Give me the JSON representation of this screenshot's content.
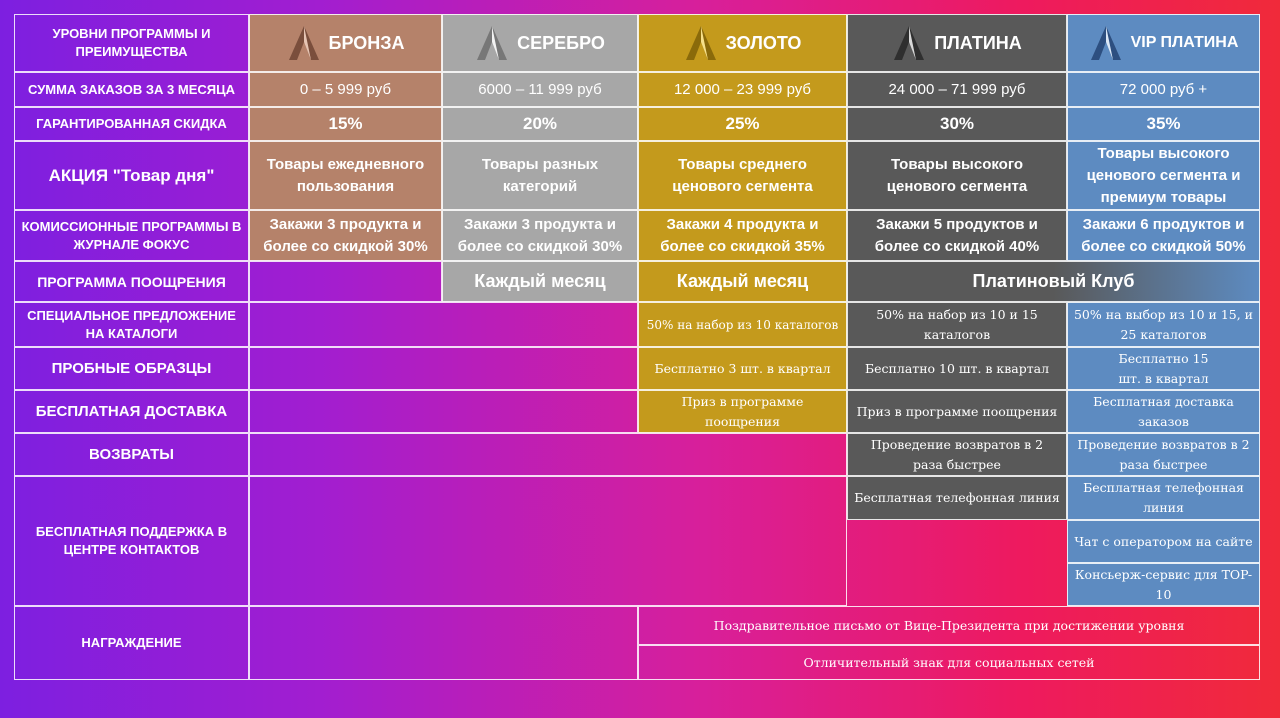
{
  "header_label": "Уровни программы и преимущества",
  "tiers": [
    {
      "name": "БРОНЗА",
      "color": "#b5826a"
    },
    {
      "name": "СЕРЕБРО",
      "color": "#a7a7a7"
    },
    {
      "name": "ЗОЛОТО",
      "color": "#c49a1c"
    },
    {
      "name": "ПЛАТИНА",
      "color": "#595959"
    },
    {
      "name": "VIP ПЛАТИНА",
      "color": "#5d8bc1"
    }
  ],
  "rows": {
    "sum": {
      "label": "Сумма заказов за 3 месяца",
      "values": [
        "0 – 5 999 руб",
        "6000 – 11 999 руб",
        "12 000 – 23 999 руб",
        "24 000 – 71 999 руб",
        "72 000 руб  +"
      ]
    },
    "discount": {
      "label": "Гарантированная скидка",
      "values": [
        "15%",
        "20%",
        "25%",
        "30%",
        "35%"
      ]
    },
    "deal": {
      "label": "АКЦИЯ \"Товар дня\"",
      "values": [
        "Товары ежедневного пользования",
        "Товары разных категорий",
        "Товары среднего ценового сегмента",
        "Товары высокого ценового сегмента",
        "Товары высокого ценового сегмента и премиум товары"
      ]
    },
    "commission": {
      "label": "Комиссионные программы в журнале Фокус",
      "values": [
        "Закажи 3 продукта и более со скидкой 30%",
        "Закажи 3 продукта и более со скидкой 30%",
        "Закажи 4 продукта и более со скидкой 35%",
        "Закажи 5 продуктов и более со скидкой 40%",
        "Закажи 6 продуктов и более со скидкой 50%"
      ]
    },
    "reward_program": {
      "label": "Программа поощрения",
      "silver": "Каждый месяц",
      "gold": "Каждый месяц",
      "platinum": "Платиновый Клуб"
    },
    "catalogs": {
      "label": "Специальное предложение на каталоги",
      "gold": "50% на набор из 10 каталогов",
      "platinum": "50% на набор из 10 и 15 каталогов",
      "vip": "50% на выбор из 10 и 15, и 25 каталогов"
    },
    "samples": {
      "label": "Пробные образцы",
      "gold": "Бесплатно 3 шт. в квартал",
      "platinum": "Бесплатно  10 шт. в квартал",
      "vip": "Бесплатно 15 шт. в квартал"
    },
    "delivery": {
      "label": "Бесплатная доставка",
      "gold": "Приз в программе поощрения",
      "platinum": "Приз в программе поощрения",
      "vip": "Бесплатная доставка заказов"
    },
    "returns": {
      "label": "Возвраты",
      "platinum": "Проведение возвратов в 2 раза быстрее",
      "vip": "Проведение возвратов в 2 раза быстрее"
    },
    "support": {
      "label": "Бесплатная поддержка в центре контактов",
      "platinum": "Бесплатная телефонная линия",
      "vip": [
        "Бесплатная телефонная линия",
        "Чат с оператором на сайте",
        "Консьерж-сервис для TOP-10"
      ]
    },
    "award": {
      "label": "Награждение",
      "items": [
        "Поздравительное  письмо  от  Вице-Президента при достижении уровня",
        "Отличительный знак для социальных сетей"
      ]
    }
  }
}
